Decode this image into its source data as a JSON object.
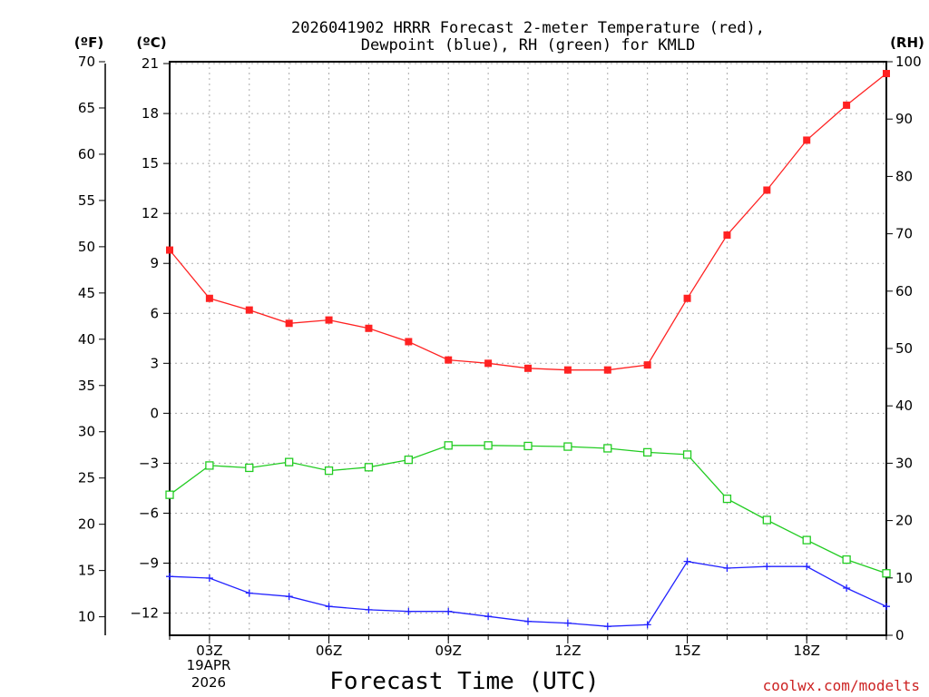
{
  "chart_data": {
    "type": "line",
    "title_line1": "2026041902 HRRR Forecast 2-meter Temperature (red),",
    "title_line2": "Dewpoint (blue), RH (green) for KMLD",
    "unit_f": "(ºF)",
    "unit_c": "(ºC)",
    "unit_rh": "(RH)",
    "xlabel": "Forecast Time (UTC)",
    "date_label_line1": "19APR",
    "date_label_line2": "2026",
    "credit": "coolwx.com/modelts",
    "x_hours": [
      2,
      3,
      4,
      5,
      6,
      7,
      8,
      9,
      10,
      11,
      12,
      13,
      14,
      15,
      16,
      17,
      18,
      19,
      20
    ],
    "x_tick_hours": [
      3,
      6,
      9,
      12,
      15,
      18
    ],
    "x_tick_labels": [
      "03Z",
      "06Z",
      "09Z",
      "12Z",
      "15Z",
      "18Z"
    ],
    "xlim": [
      2,
      20
    ],
    "celsius_axis": {
      "ylim": [
        -13.333,
        21.111
      ],
      "ticks": [
        21,
        18,
        15,
        12,
        9,
        6,
        3,
        0,
        -3,
        -6,
        -9,
        -12
      ],
      "tick_labels": [
        "21",
        "18",
        "15",
        "12",
        "9",
        "6",
        "3",
        "0",
        "−3",
        "−6",
        "−9",
        "−12"
      ]
    },
    "fahrenheit_axis": {
      "ylim": [
        8,
        70
      ],
      "ticks": [
        70,
        65,
        60,
        55,
        50,
        45,
        40,
        35,
        30,
        25,
        20,
        15,
        10
      ],
      "tick_labels": [
        "70",
        "65",
        "60",
        "55",
        "50",
        "45",
        "40",
        "35",
        "30",
        "25",
        "20",
        "15",
        "10"
      ]
    },
    "rh_axis": {
      "ylim": [
        0,
        100
      ],
      "ticks": [
        100,
        90,
        80,
        70,
        60,
        50,
        40,
        30,
        20,
        10,
        0
      ],
      "tick_labels": [
        "100",
        "90",
        "80",
        "70",
        "60",
        "50",
        "40",
        "30",
        "20",
        "10",
        "0"
      ]
    },
    "series": [
      {
        "name": "Temperature",
        "axis": "celsius",
        "color": "#ff2222",
        "marker": "filled-square",
        "values": [
          9.8,
          6.9,
          6.2,
          5.4,
          5.6,
          5.1,
          4.3,
          3.2,
          3.0,
          2.7,
          2.6,
          2.6,
          2.9,
          6.9,
          10.7,
          13.4,
          16.4,
          18.5,
          20.4
        ]
      },
      {
        "name": "Dewpoint",
        "axis": "celsius",
        "color": "#2222ff",
        "marker": "plus",
        "values": [
          -9.8,
          -9.9,
          -10.8,
          -11.0,
          -11.6,
          -11.8,
          -11.9,
          -11.9,
          -12.2,
          -12.5,
          -12.6,
          -12.8,
          -12.7,
          -8.9,
          -9.3,
          -9.2,
          -9.2,
          -10.5,
          -11.6
        ]
      },
      {
        "name": "RH",
        "axis": "rh",
        "color": "#22cc22",
        "marker": "open-square",
        "values": [
          24.5,
          29.6,
          29.2,
          30.2,
          28.7,
          29.3,
          30.6,
          33.1,
          33.1,
          33.0,
          32.9,
          32.6,
          31.9,
          31.5,
          23.8,
          20.1,
          16.6,
          13.2,
          10.8
        ]
      }
    ]
  }
}
